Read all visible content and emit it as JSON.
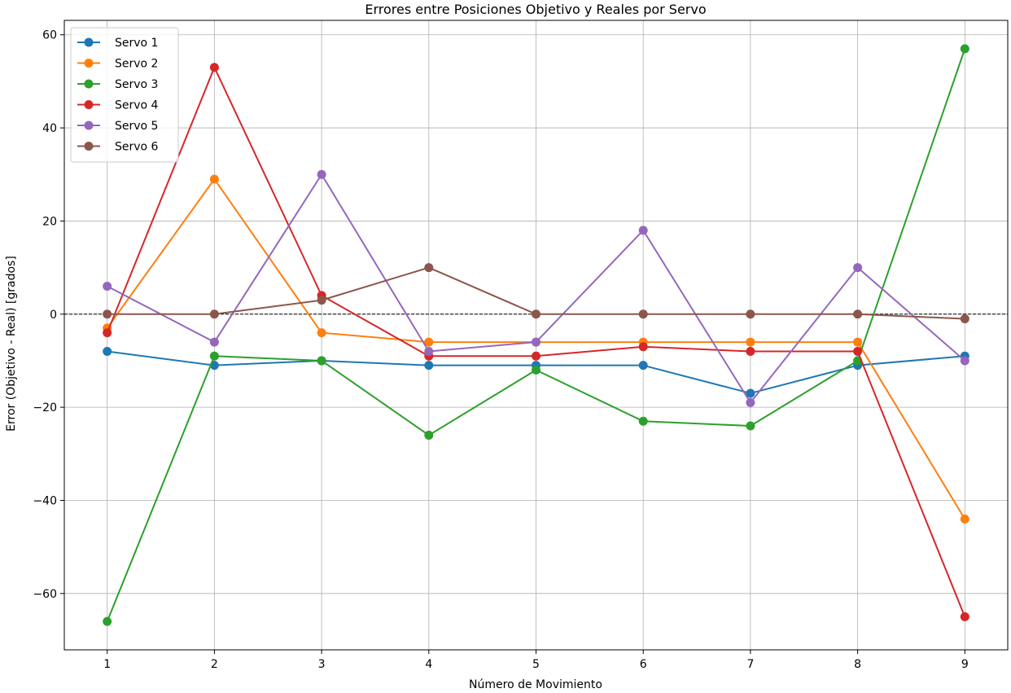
{
  "chart_data": {
    "type": "line",
    "title": "Errores entre Posiciones Objetivo y Reales por Servo",
    "xlabel": "Número de Movimiento",
    "ylabel": "Error (Objetivo - Real) [grados]",
    "x": [
      1,
      2,
      3,
      4,
      5,
      6,
      7,
      8,
      9
    ],
    "xlim": [
      0.6,
      9.4
    ],
    "ylim": [
      -72.1,
      63.1
    ],
    "x_ticks": [
      1,
      2,
      3,
      4,
      5,
      6,
      7,
      8,
      9
    ],
    "y_ticks": [
      -60,
      -40,
      -20,
      0,
      20,
      40,
      60
    ],
    "x_tick_labels": [
      "1",
      "2",
      "3",
      "4",
      "5",
      "6",
      "7",
      "8",
      "9"
    ],
    "y_tick_labels": [
      "−60",
      "−40",
      "−20",
      "0",
      "20",
      "40",
      "60"
    ],
    "grid": true,
    "reference_line": {
      "y": 0,
      "style": "dashed",
      "color": "#000000"
    },
    "legend_position": "top-left",
    "series": [
      {
        "name": "Servo 1",
        "color": "#1f77b4",
        "values": [
          -8,
          -11,
          -10,
          -11,
          -11,
          -11,
          -17,
          -11,
          -9
        ]
      },
      {
        "name": "Servo 2",
        "color": "#ff7f0e",
        "values": [
          -3,
          29,
          -4,
          -6,
          -6,
          -6,
          -6,
          -6,
          -44
        ]
      },
      {
        "name": "Servo 3",
        "color": "#2ca02c",
        "values": [
          -66,
          -9,
          -10,
          -26,
          -12,
          -23,
          -24,
          -10,
          57
        ]
      },
      {
        "name": "Servo 4",
        "color": "#d62728",
        "values": [
          -4,
          53,
          4,
          -9,
          -9,
          -7,
          -8,
          -8,
          -65
        ]
      },
      {
        "name": "Servo 5",
        "color": "#9467bd",
        "values": [
          6,
          -6,
          30,
          -8,
          -6,
          18,
          -19,
          10,
          -10
        ]
      },
      {
        "name": "Servo 6",
        "color": "#8c564b",
        "values": [
          0,
          0,
          3,
          10,
          0,
          0,
          0,
          0,
          -1
        ]
      }
    ]
  }
}
